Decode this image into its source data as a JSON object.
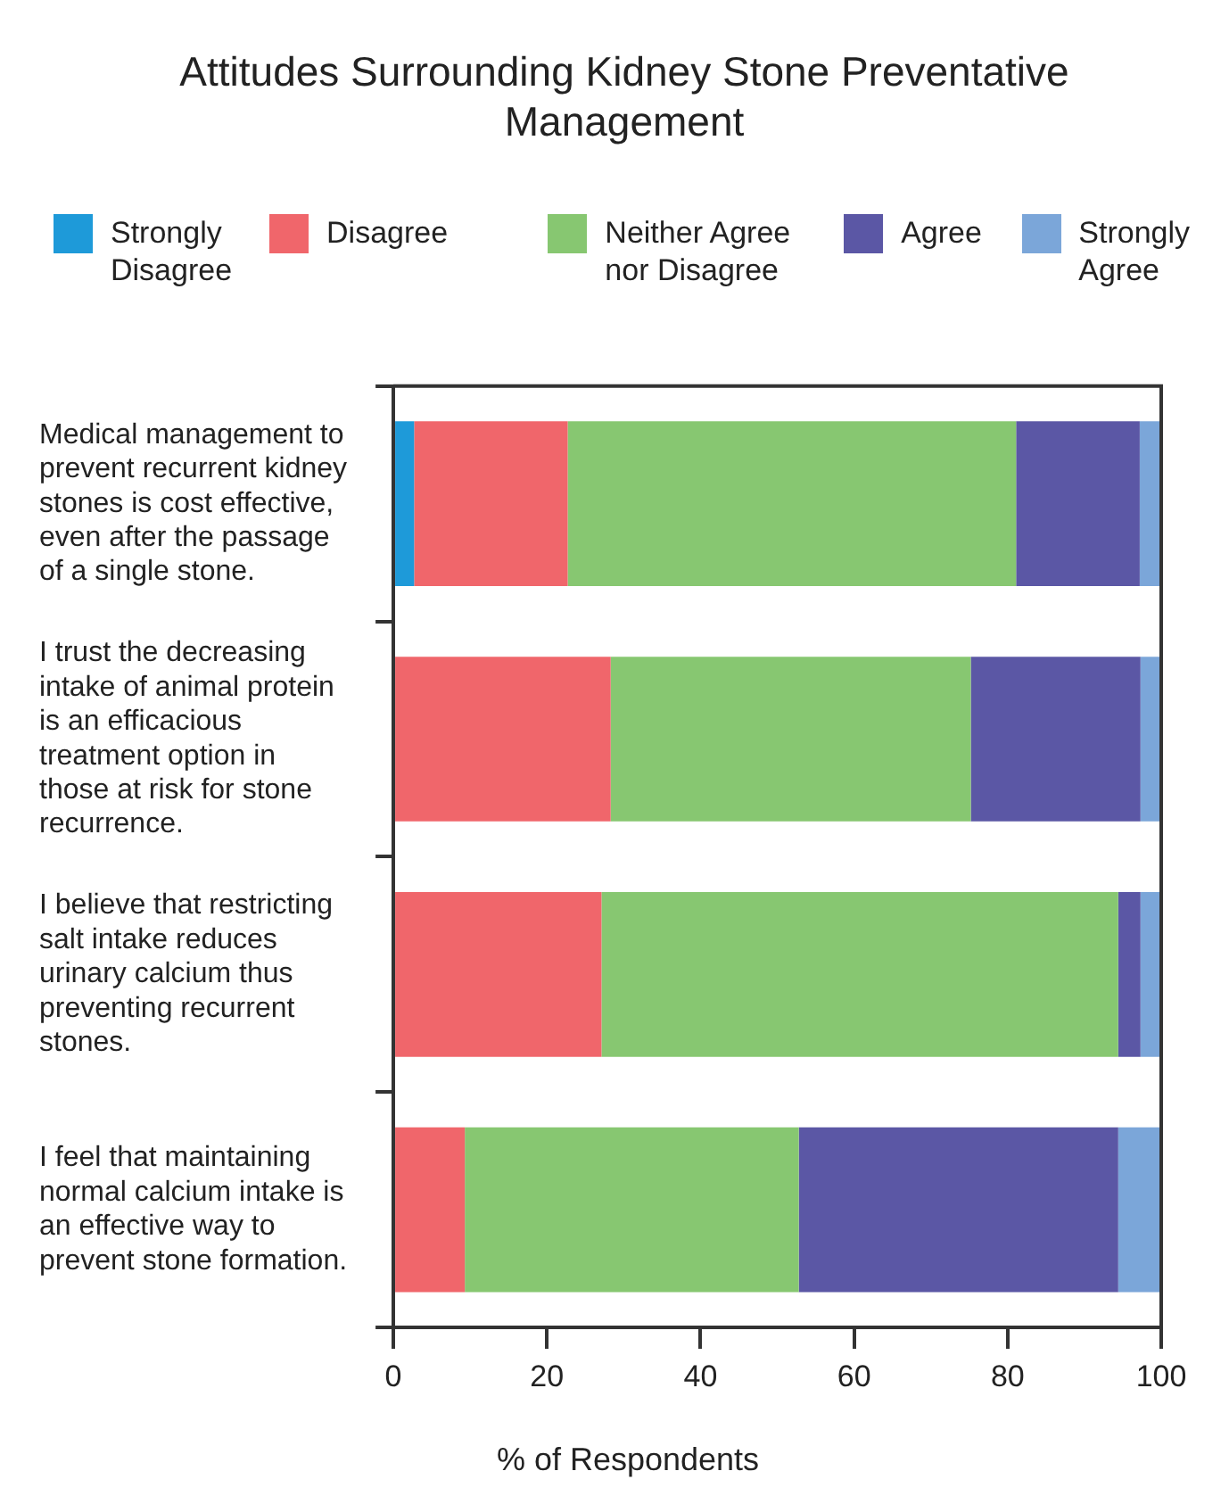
{
  "chart_data": {
    "type": "bar",
    "orientation": "horizontal",
    "stacked": true,
    "title": "Attitudes Surrounding Kidney Stone Preventative Management",
    "xlabel": "% of Respondents",
    "categories": [
      "Medical management to prevent recurrent kidney stones is cost effective, even after the passage of a single stone.",
      "I trust the decreasing intake of animal protein is an efficacious treatment option in those at risk for stone recurrence.",
      "I believe that restricting salt intake reduces urinary calcium thus preventing recurrent stones.",
      "I feel that maintaining normal calcium intake is an effective way to prevent stone formation."
    ],
    "series": [
      {
        "name": "Strongly Disagree",
        "color": "#1e9ad9",
        "values": [
          2.7,
          0,
          0,
          0
        ]
      },
      {
        "name": "Disagree",
        "color": "#f0666b",
        "values": [
          20,
          28.3,
          27.1,
          9.3
        ]
      },
      {
        "name": "Neither Agree nor Disagree",
        "color": "#87c771",
        "values": [
          58.4,
          46.9,
          67.3,
          43.5
        ]
      },
      {
        "name": "Agree",
        "color": "#5b57a5",
        "values": [
          16.1,
          22.1,
          2.9,
          41.6
        ]
      },
      {
        "name": "Strongly Agree",
        "color": "#7ba6d9",
        "values": [
          2.8,
          2.7,
          2.7,
          5.6
        ]
      }
    ],
    "xlim": [
      0,
      100
    ],
    "xticks": [
      0,
      20,
      40,
      60,
      80,
      100
    ],
    "grid": false,
    "legend": "top"
  }
}
